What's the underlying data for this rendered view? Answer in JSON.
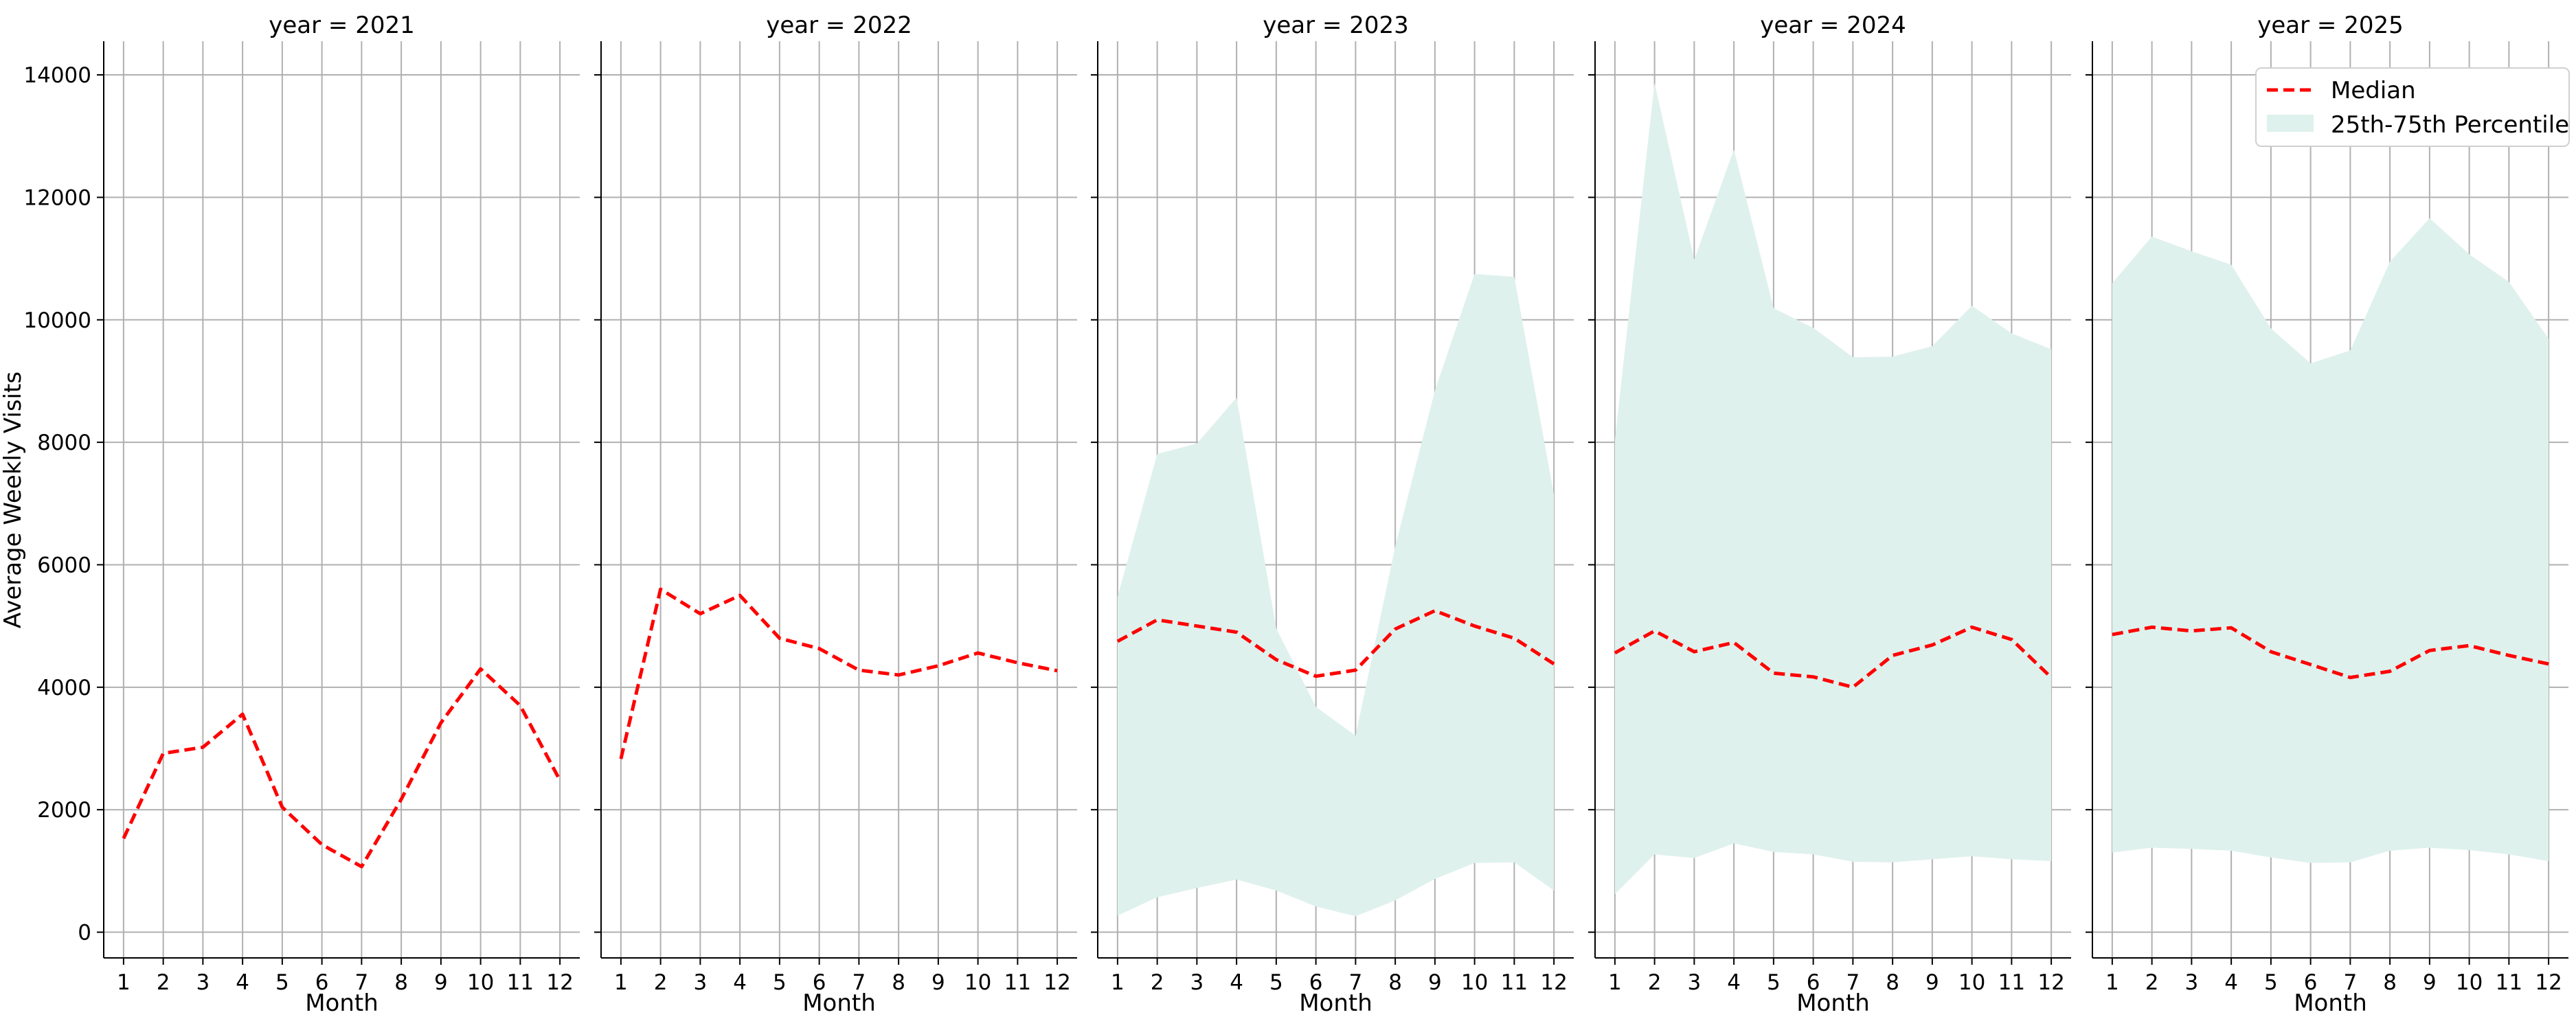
{
  "chart_data": {
    "type": "line",
    "ylabel": "Average Weekly Visits",
    "xlabel": "Month",
    "ylim": [
      -420,
      14550
    ],
    "xlim": [
      0.5,
      12.5
    ],
    "yticks": [
      0,
      2000,
      4000,
      6000,
      8000,
      10000,
      12000,
      14000
    ],
    "xticks": [
      1,
      2,
      3,
      4,
      5,
      6,
      7,
      8,
      9,
      10,
      11,
      12
    ],
    "grid": true,
    "legend_placement": "top-right",
    "legend": {
      "median_label": "Median",
      "band_label": "25th-75th Percentile"
    },
    "colors": {
      "median": "#ff0000",
      "band": "#dff1ed"
    },
    "panels": [
      {
        "title": "year = 2021",
        "x": [
          1,
          2,
          3,
          4,
          5,
          6,
          7,
          8,
          9,
          10,
          11,
          12
        ],
        "median": [
          1530,
          2920,
          3020,
          3560,
          2040,
          1430,
          1070,
          2170,
          3420,
          4300,
          3700,
          2480
        ],
        "p25": [],
        "p75": []
      },
      {
        "title": "year = 2022",
        "x": [
          1,
          2,
          3,
          4,
          5,
          6,
          7,
          8,
          9,
          10,
          11,
          12
        ],
        "median": [
          2830,
          5600,
          5200,
          5500,
          4800,
          4630,
          4280,
          4200,
          4350,
          4560,
          4400,
          4270
        ],
        "p25": [],
        "p75": []
      },
      {
        "title": "year = 2023",
        "x": [
          1,
          2,
          3,
          4,
          5,
          6,
          7,
          8,
          9,
          10,
          11,
          12
        ],
        "median": [
          4750,
          5100,
          5000,
          4900,
          4450,
          4180,
          4280,
          4950,
          5250,
          5000,
          4800,
          4380
        ],
        "p25": [
          270,
          570,
          720,
          860,
          680,
          420,
          260,
          520,
          870,
          1130,
          1140,
          680
        ],
        "p75": [
          5480,
          7810,
          7980,
          8730,
          4960,
          3680,
          3210,
          6300,
          8850,
          10750,
          10700,
          7150
        ]
      },
      {
        "title": "year = 2024",
        "x": [
          1,
          2,
          3,
          4,
          5,
          6,
          7,
          8,
          9,
          10,
          11,
          12
        ],
        "median": [
          4560,
          4920,
          4580,
          4730,
          4230,
          4170,
          4000,
          4520,
          4690,
          4980,
          4780,
          4160
        ],
        "p25": [
          620,
          1270,
          1210,
          1450,
          1310,
          1270,
          1150,
          1140,
          1190,
          1240,
          1190,
          1160
        ],
        "p75": [
          8040,
          13870,
          10980,
          12780,
          10190,
          9870,
          9390,
          9400,
          9570,
          10230,
          9780,
          9520
        ]
      },
      {
        "title": "year = 2025",
        "x": [
          1,
          2,
          3,
          4,
          5,
          6,
          7,
          8,
          9,
          10,
          11,
          12
        ],
        "median": [
          4860,
          4980,
          4920,
          4970,
          4580,
          4370,
          4160,
          4260,
          4600,
          4680,
          4520,
          4380
        ],
        "p25": [
          1300,
          1380,
          1360,
          1330,
          1220,
          1130,
          1140,
          1330,
          1380,
          1340,
          1270,
          1160
        ],
        "p75": [
          10600,
          11360,
          11120,
          10900,
          9860,
          9290,
          9500,
          10950,
          11660,
          11070,
          10620,
          9690
        ]
      }
    ]
  }
}
